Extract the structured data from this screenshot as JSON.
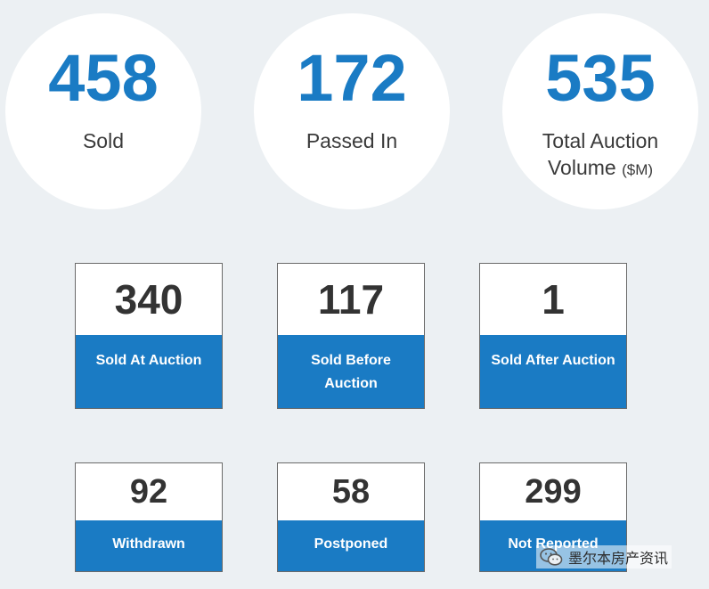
{
  "stats": [
    {
      "value": "458",
      "label": "Sold",
      "unit": ""
    },
    {
      "value": "172",
      "label": "Passed In",
      "unit": ""
    },
    {
      "value": "535",
      "label": "Total Auction Volume",
      "unit": "($M)"
    }
  ],
  "cards_row1": [
    {
      "value": "340",
      "label": "Sold At Auction"
    },
    {
      "value": "117",
      "label": "Sold Before Auction"
    },
    {
      "value": "1",
      "label": "Sold After Auction"
    }
  ],
  "cards_row2": [
    {
      "value": "92",
      "label": "Withdrawn"
    },
    {
      "value": "58",
      "label": "Postponed"
    },
    {
      "value": "299",
      "label": "Not Reported"
    }
  ],
  "watermark": {
    "text": "墨尔本房产资讯",
    "icon": "wechat-icon"
  },
  "colors": {
    "accent": "#1a7bc4",
    "background": "#ecf0f3",
    "card_text": "#333333"
  }
}
